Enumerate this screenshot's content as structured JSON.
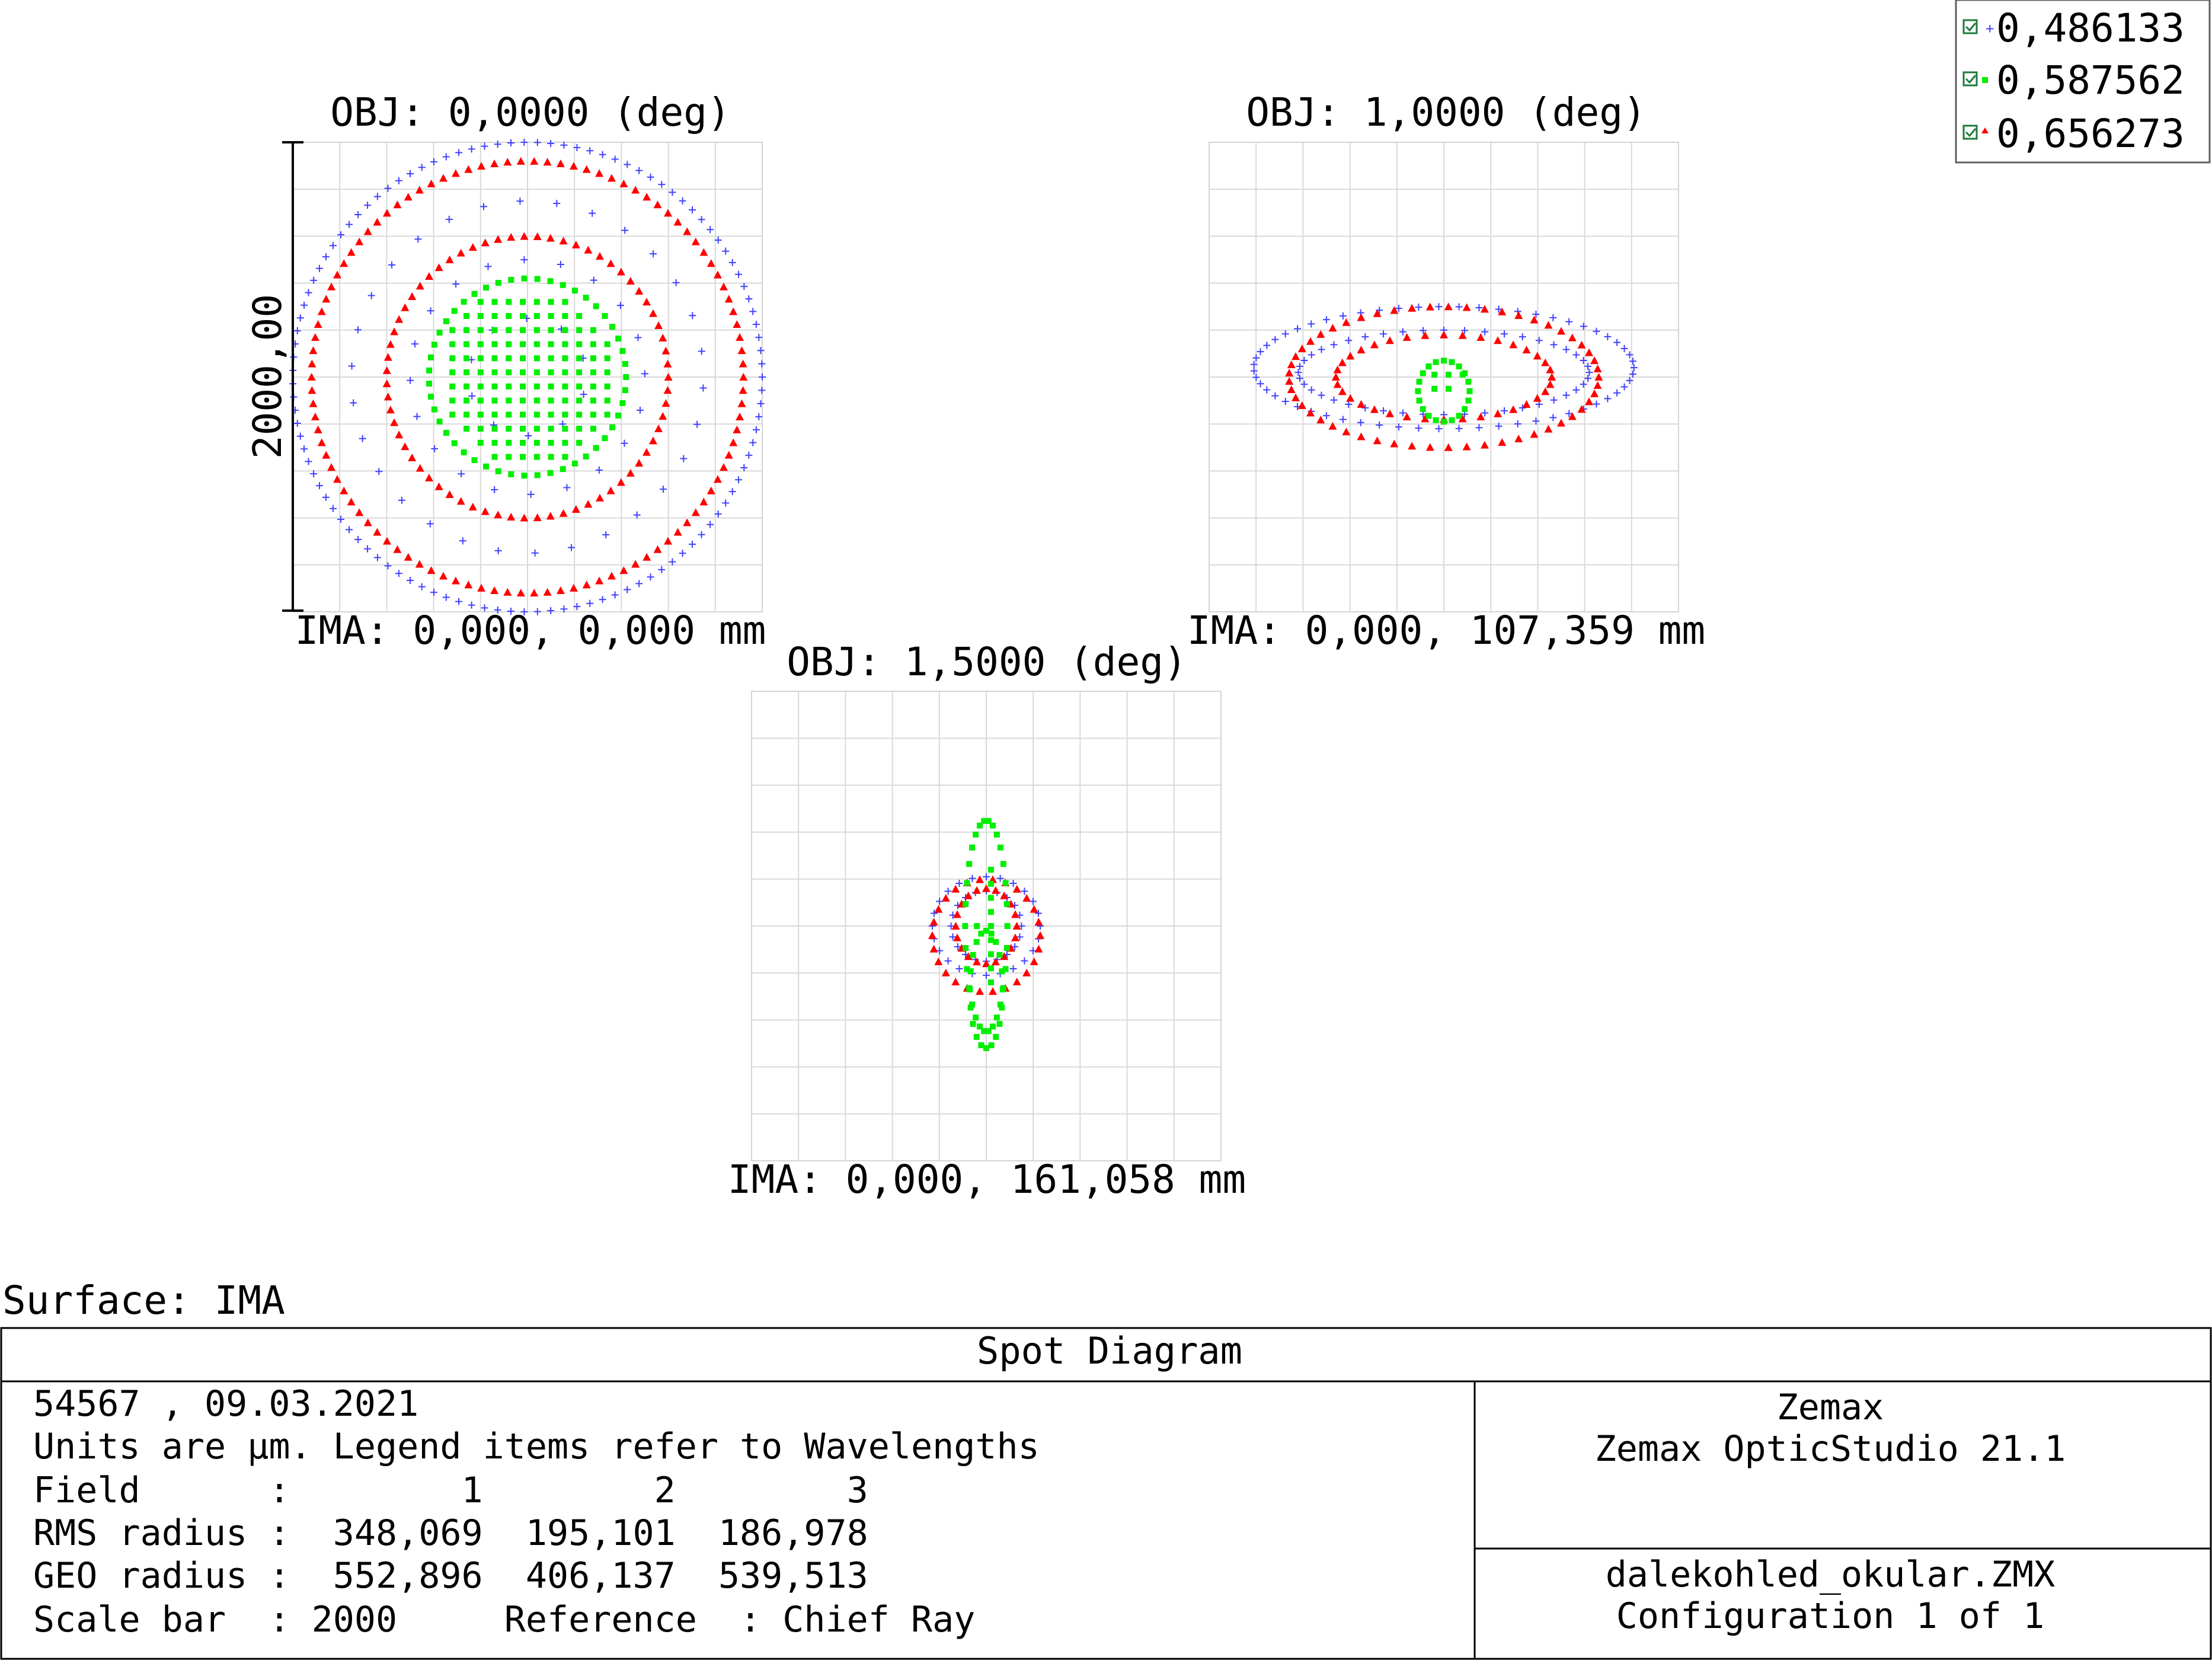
{
  "legend": {
    "entries": [
      {
        "label": "0,486133",
        "color": "#4040ff",
        "marker": "plus"
      },
      {
        "label": "0,587562",
        "color": "#00ee00",
        "marker": "square"
      },
      {
        "label": "0,656273",
        "color": "#ff0000",
        "marker": "triangle"
      }
    ]
  },
  "chart_data": [
    {
      "type": "scatter",
      "title": "OBJ: 0,0000 (deg)",
      "footer": "IMA: 0,000, 0,000 mm",
      "scale_bar_label": "2000,00",
      "units": "µm",
      "box_size": 2000,
      "grid": true,
      "pattern": {
        "blue": {
          "rings": [
            [
              1000,
              1000,
              0
            ]
          ],
          "inner": [
            [
              750,
              750,
              0
            ]
          ]
        },
        "red": {
          "rings": [
            [
              920,
              920,
              0
            ],
            [
              600,
              600,
              0
            ]
          ]
        },
        "green": {
          "rings": [
            [
              420,
              420,
              0
            ]
          ],
          "fill": [
            [
              380,
              380,
              0
            ]
          ]
        }
      }
    },
    {
      "type": "scatter",
      "title": "OBJ: 1,0000 (deg)",
      "footer": "IMA: 0,000, 107,359 mm",
      "units": "µm",
      "box_size": 2000,
      "grid": true,
      "pattern": {
        "blue": {
          "rings": [
            [
              810,
              260,
              -40
            ],
            [
              620,
              180,
              -20
            ]
          ]
        },
        "red": {
          "rings": [
            [
              660,
              300,
              0
            ],
            [
              460,
              180,
              0
            ]
          ]
        },
        "green": {
          "rings": [
            [
              110,
              130,
              60
            ]
          ],
          "fill": [
            [
              100,
              70,
              0
            ]
          ]
        }
      }
    },
    {
      "type": "scatter",
      "title": "OBJ: 1,5000 (deg)",
      "footer": "IMA: 0,000, 161,058 mm",
      "units": "µm",
      "box_size": 2000,
      "grid": true,
      "pattern": {
        "blue": {
          "rings": [
            [
              230,
              210,
              0
            ],
            [
              150,
              150,
              0
            ]
          ]
        },
        "red": {
          "rings": [
            [
              230,
              240,
              40
            ],
            [
              130,
              160,
              0
            ]
          ]
        },
        "green": {
          "rings": [
            [
              90,
              450,
              0
            ],
            [
              70,
              250,
              270
            ]
          ],
          "fill": [
            [
              40,
              300,
              0
            ]
          ]
        }
      }
    }
  ],
  "surface_label": "Surface: IMA",
  "info": {
    "title": "Spot Diagram",
    "left_lines": [
      "54567 , 09.03.2021",
      "Units are µm. Legend items refer to Wavelengths",
      "Field      :        1        2        3",
      "RMS radius :  348,069  195,101  186,978",
      "GEO radius :  552,896  406,137  539,513",
      "Scale bar  : 2000     Reference  : Chief Ray"
    ],
    "right_top": [
      "Zemax",
      "Zemax OpticStudio 21.1"
    ],
    "right_bottom": [
      "dalekohled_okular.ZMX",
      "Configuration 1 of 1"
    ]
  }
}
